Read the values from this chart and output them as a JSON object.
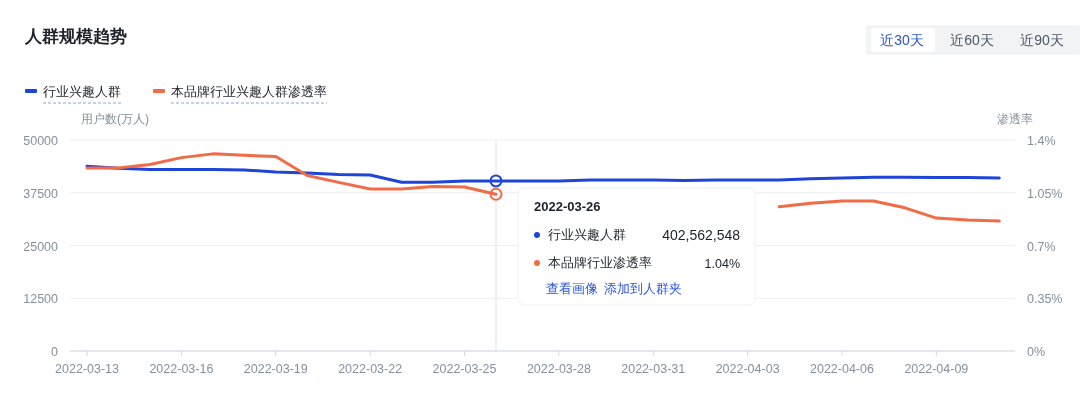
{
  "chart_data": {
    "type": "line",
    "title": "人群规模趋势",
    "ylabel": "用户数(万人)",
    "y2label": "渗透率",
    "x": [
      "2022-03-13",
      "2022-03-14",
      "2022-03-15",
      "2022-03-16",
      "2022-03-17",
      "2022-03-18",
      "2022-03-19",
      "2022-03-20",
      "2022-03-21",
      "2022-03-22",
      "2022-03-23",
      "2022-03-24",
      "2022-03-25",
      "2022-03-26",
      "2022-03-27",
      "2022-03-28",
      "2022-03-29",
      "2022-03-30",
      "2022-03-31",
      "2022-04-01",
      "2022-04-02",
      "2022-04-03",
      "2022-04-04",
      "2022-04-05",
      "2022-04-06",
      "2022-04-07",
      "2022-04-08",
      "2022-04-09",
      "2022-04-10",
      "2022-04-11"
    ],
    "series": [
      {
        "name": "行业兴趣人群",
        "color": "#1f45d8",
        "values": [
          43800,
          43300,
          43000,
          43000,
          43000,
          42900,
          42400,
          42200,
          41800,
          41700,
          40000,
          40000,
          40300,
          40300,
          40300,
          40300,
          40500,
          40500,
          40500,
          40400,
          40500,
          40500,
          40500,
          40800,
          41000,
          41200,
          41200,
          41100,
          41100,
          41000
        ]
      },
      {
        "name": "本品牌行业兴趣人群渗透率",
        "color": "#f26b47",
        "axis": "y2",
        "values": [
          1.215,
          1.215,
          1.237,
          1.283,
          1.308,
          1.299,
          1.29,
          1.164,
          1.119,
          1.075,
          1.075,
          1.091,
          1.088,
          1.04,
          null,
          null,
          null,
          null,
          null,
          null,
          null,
          null,
          0.957,
          0.98,
          0.995,
          0.995,
          0.95,
          0.882,
          0.869,
          0.862
        ]
      }
    ],
    "xlim": [
      "2022-03-12T11:00",
      "2022-04-11T12:00"
    ],
    "xticks": [
      {
        "value": "2022-03-13",
        "label": "2022-03-13"
      },
      {
        "value": "2022-03-16",
        "label": "2022-03-16"
      },
      {
        "value": "2022-03-19",
        "label": "2022-03-19"
      },
      {
        "value": "2022-03-22",
        "label": "2022-03-22"
      },
      {
        "value": "2022-03-25",
        "label": "2022-03-25"
      },
      {
        "value": "2022-03-28",
        "label": "2022-03-28"
      },
      {
        "value": "2022-03-31",
        "label": "2022-03-31"
      },
      {
        "value": "2022-04-03",
        "label": "2022-04-03"
      },
      {
        "value": "2022-04-06",
        "label": "2022-04-06"
      },
      {
        "value": "2022-04-09",
        "label": "2022-04-09"
      }
    ],
    "ylim": [
      0,
      50000
    ],
    "yticks": [
      0,
      12500,
      25000,
      37500,
      50000
    ],
    "y2lim": [
      0,
      1.4
    ],
    "y2ticks": [
      {
        "value": 0,
        "label": "0%"
      },
      {
        "value": 0.35,
        "label": "0.35%"
      },
      {
        "value": 0.7,
        "label": "0.7%"
      },
      {
        "value": 1.05,
        "label": "1.05%"
      },
      {
        "value": 1.4,
        "label": "1.4%"
      }
    ],
    "ref_lines": [
      {
        "axis": "x",
        "value": "2022-03-26",
        "color": "#dfe2e8"
      }
    ],
    "grid": "y",
    "legend": "top left",
    "marker": "none",
    "line_style": "solid",
    "annotations": [
      "2022-03-26",
      "行业兴趣人群",
      "402,562,548",
      "本品牌行业渗透率",
      "1.04%",
      "查看画像",
      "添加到人群夹",
      "近30天",
      "近60天",
      "近90天"
    ]
  }
}
